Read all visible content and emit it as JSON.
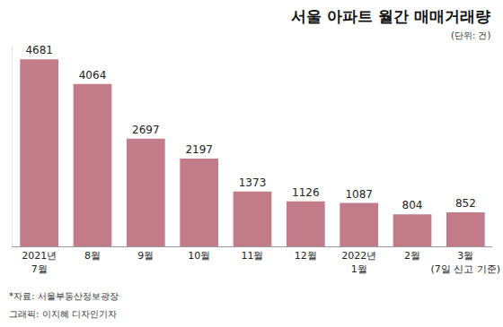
{
  "chart_data": {
    "type": "bar",
    "title": "서울 아파트 월간 매매거래량",
    "subtitle": "(단위: 건)",
    "categories": [
      "2021년\n7월",
      "8월",
      "9월",
      "10월",
      "11월",
      "12월",
      "2022년\n1월",
      "2월",
      "3월\n(7일 신고 기준)"
    ],
    "values": [
      4681,
      4064,
      2697,
      2197,
      1373,
      1126,
      1087,
      804,
      852
    ],
    "color": "#c27b89",
    "ylim": [
      0,
      5000
    ],
    "grid": false,
    "data_labels": true,
    "tick_labels": "x",
    "annotations": [
      "*자료: 서울부동산정보광장",
      "그래픽: 이지혜 디자인기자"
    ]
  }
}
